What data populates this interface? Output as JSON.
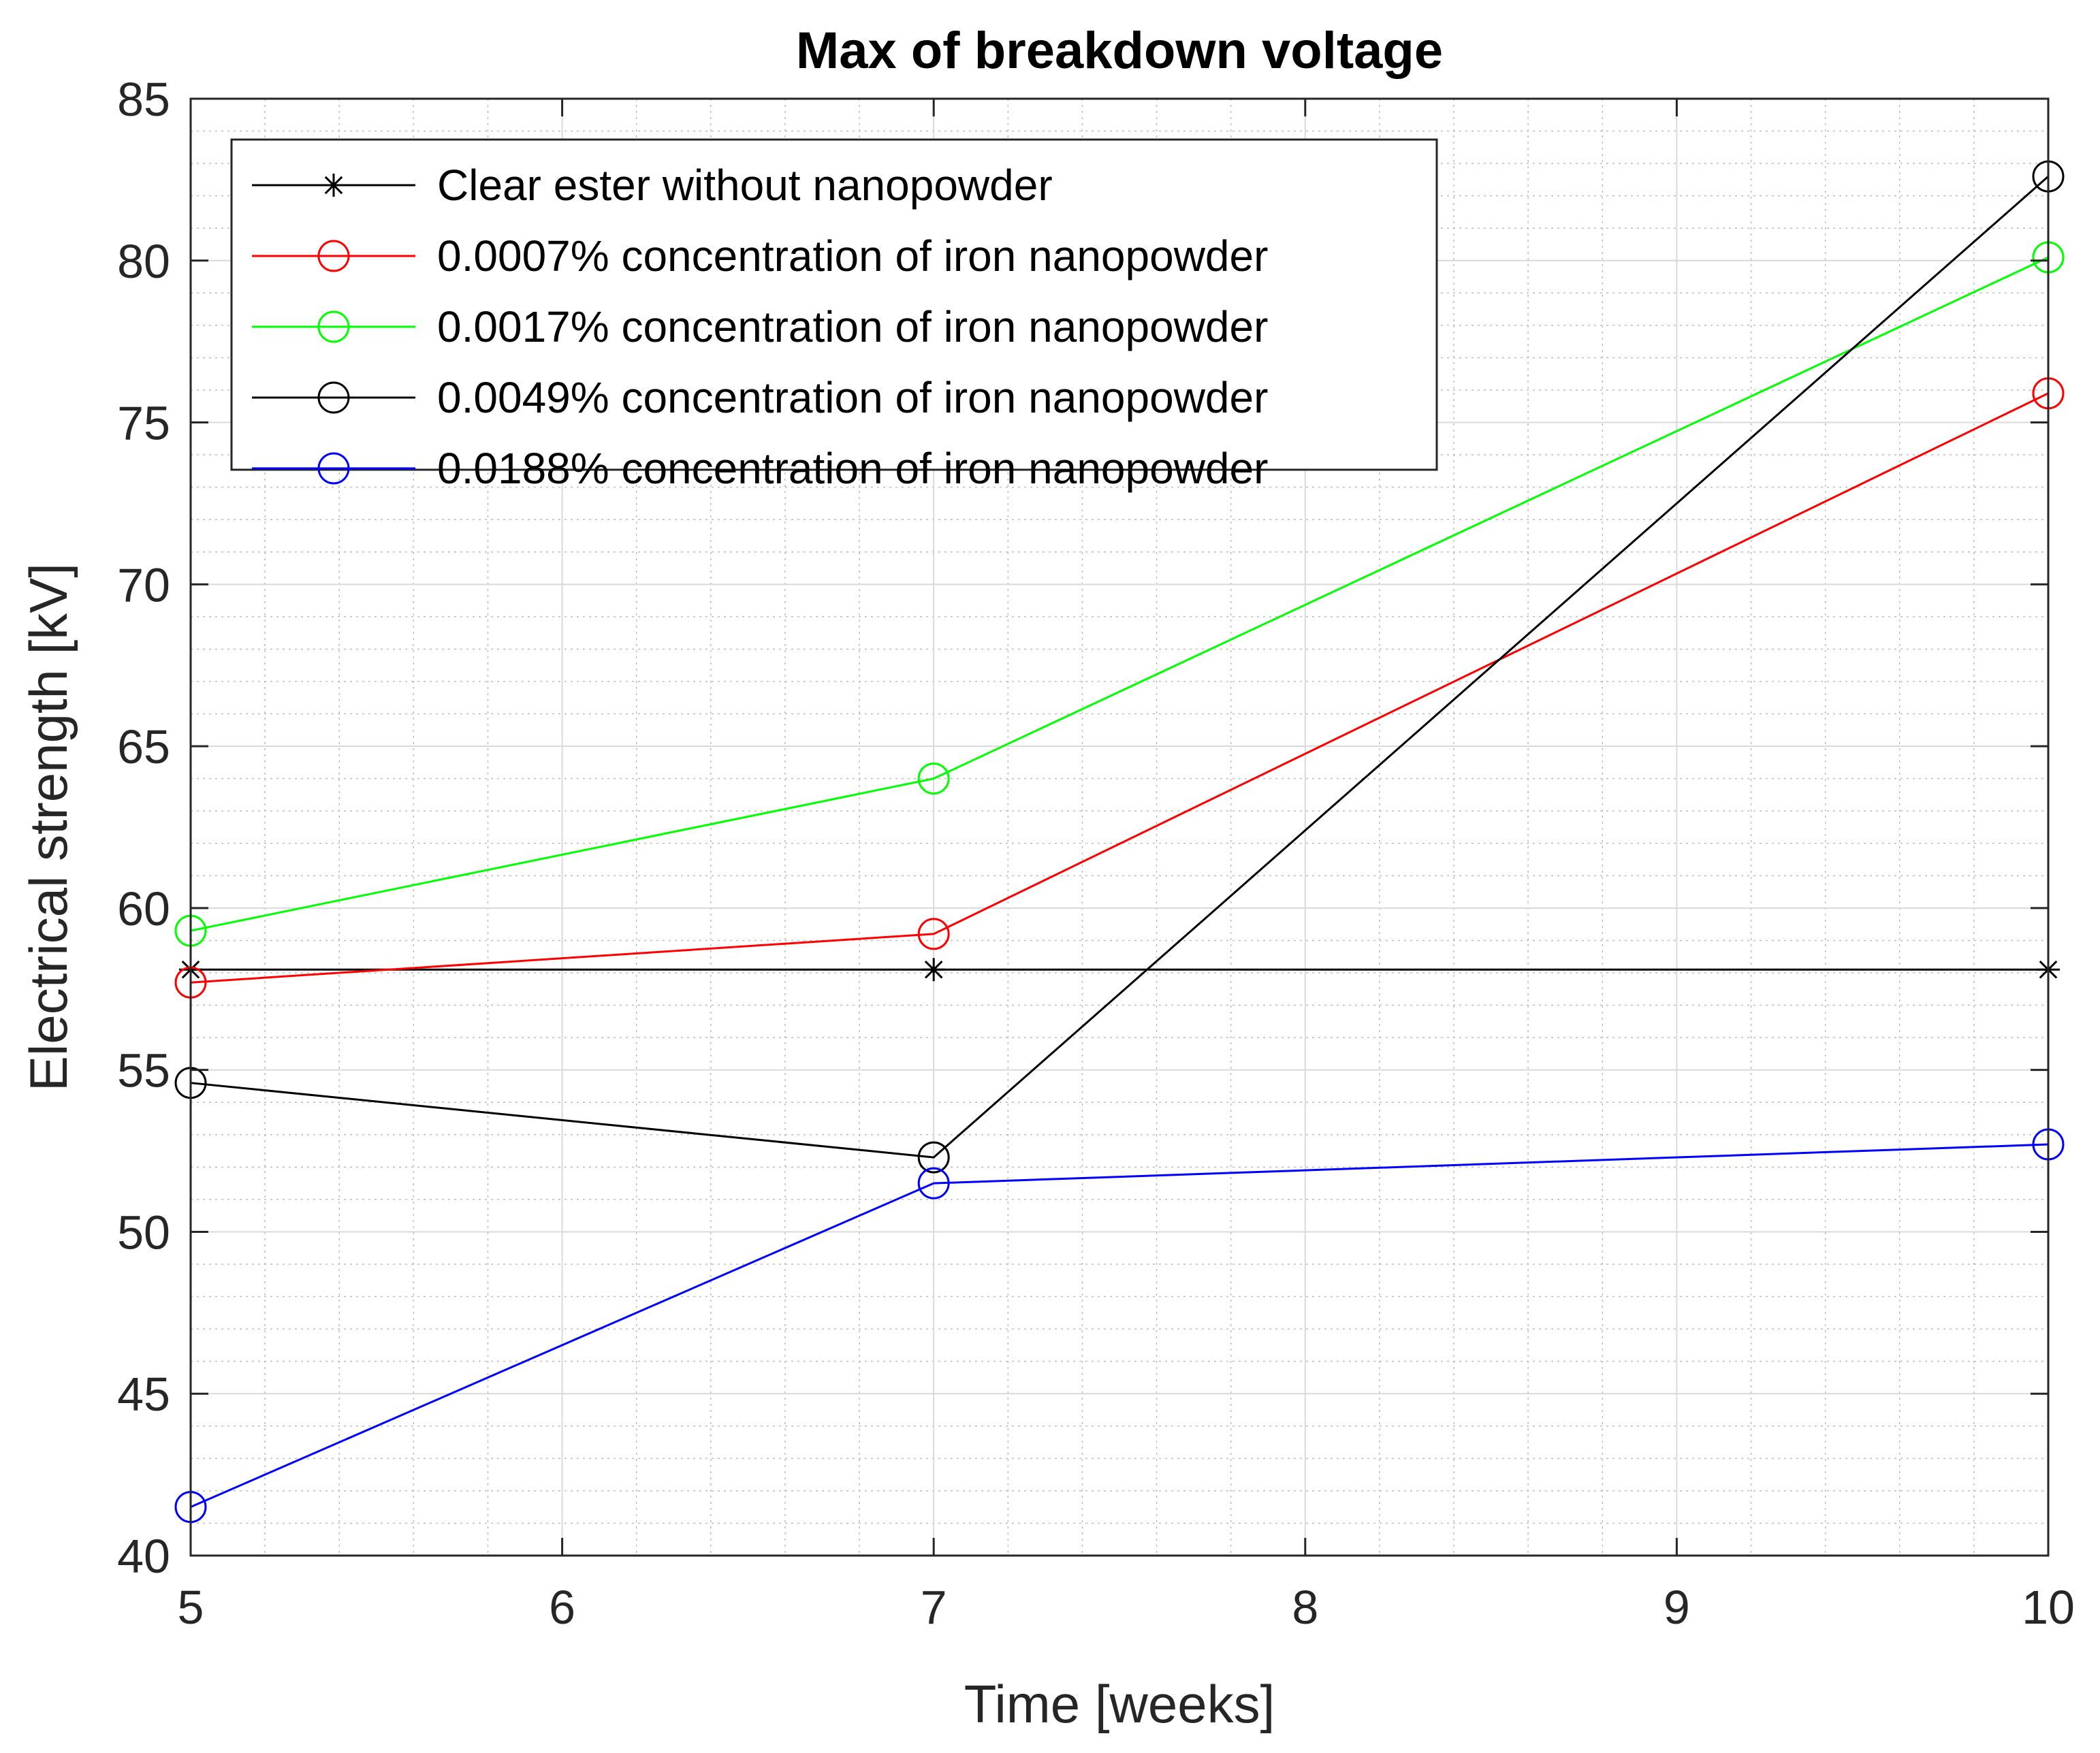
{
  "chart_data": {
    "type": "line",
    "title": "Max of breakdown voltage",
    "xlabel": "Time [weeks]",
    "ylabel": "Electrical strength [kV]",
    "xlim": [
      5,
      10
    ],
    "ylim": [
      40,
      85
    ],
    "xticks": [
      5,
      6,
      7,
      8,
      9,
      10
    ],
    "yticks": [
      40,
      45,
      50,
      55,
      60,
      65,
      70,
      75,
      80,
      85
    ],
    "grid": true,
    "minor_grid": true,
    "legend_position": "top-left",
    "series": [
      {
        "name": "Clear ester without nanopowder",
        "color": "#000000",
        "marker": "asterisk",
        "x": [
          5,
          7,
          10
        ],
        "y": [
          58.1,
          58.1,
          58.1
        ]
      },
      {
        "name": "0.0007% concentration of iron nanopowder",
        "color": "#ff0000",
        "marker": "circle",
        "x": [
          5,
          7,
          10
        ],
        "y": [
          57.7,
          59.2,
          75.9
        ]
      },
      {
        "name": "0.0017% concentration of iron nanopowder",
        "color": "#00ff00",
        "marker": "circle",
        "x": [
          5,
          7,
          10
        ],
        "y": [
          59.3,
          64.0,
          80.1
        ]
      },
      {
        "name": "0.0049% concentration of iron nanopowder",
        "color": "#000000",
        "marker": "circle",
        "x": [
          5,
          7,
          10
        ],
        "y": [
          54.6,
          52.3,
          82.6
        ]
      },
      {
        "name": "0.0188% concentration of iron nanopowder",
        "color": "#0000ff",
        "marker": "circle",
        "x": [
          5,
          7,
          10
        ],
        "y": [
          41.5,
          51.5,
          52.7
        ]
      }
    ]
  }
}
